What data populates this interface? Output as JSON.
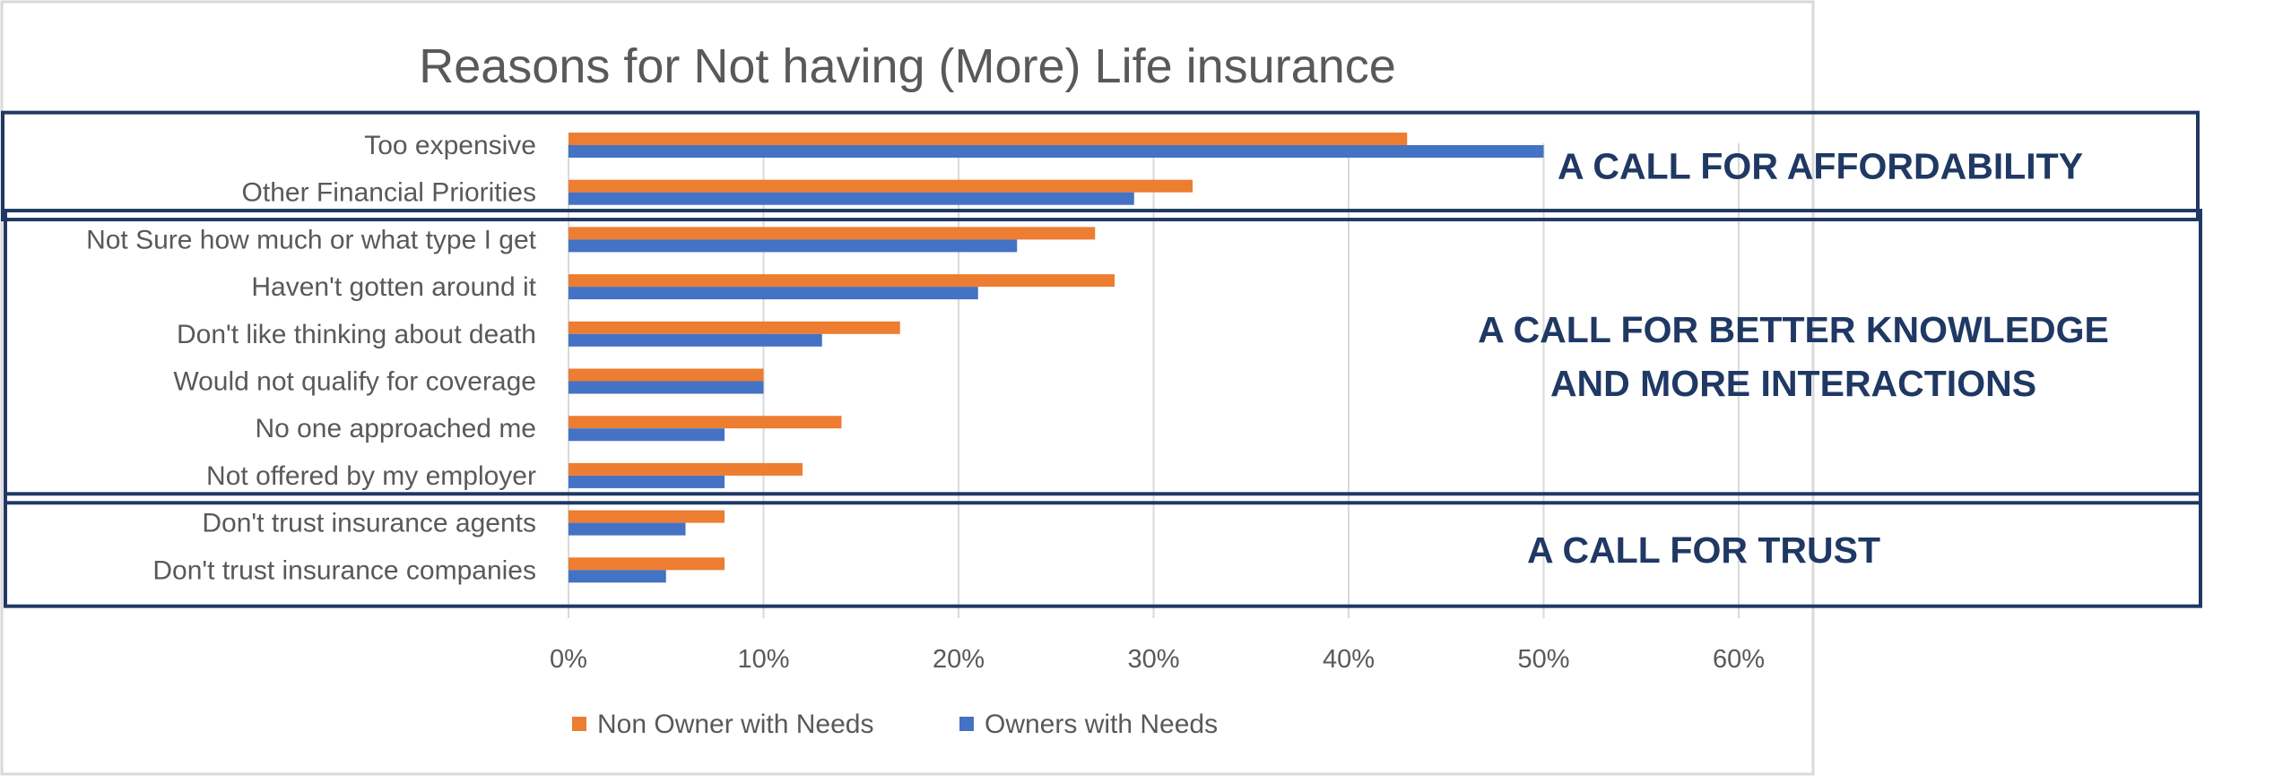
{
  "chart_data": {
    "type": "bar",
    "orientation": "horizontal",
    "title": "Reasons for Not having (More) Life insurance",
    "categories": [
      "Too expensive",
      "Other Financial Priorities",
      "Not Sure how much or what type I get",
      "Haven't gotten around it",
      "Don't like thinking about death",
      "Would not qualify for coverage",
      "No one approached me",
      "Not offered by my employer",
      "Don't trust insurance agents",
      "Don't trust insurance companies"
    ],
    "series": [
      {
        "name": "Non Owner with Needs",
        "color": "#ed7d31",
        "values": [
          43,
          32,
          27,
          28,
          17,
          10,
          14,
          12,
          8,
          8
        ]
      },
      {
        "name": "Owners with Needs",
        "color": "#4472c4",
        "values": [
          50,
          29,
          23,
          21,
          13,
          10,
          8,
          8,
          6,
          5
        ]
      }
    ],
    "xlim": [
      0,
      60
    ],
    "xticks": [
      "0%",
      "10%",
      "20%",
      "30%",
      "40%",
      "50%",
      "60%"
    ],
    "xlabel": "",
    "ylabel": "",
    "grid": "vertical",
    "legend": "bottom"
  },
  "callouts": [
    {
      "lines": [
        "A CALL FOR AFFORDABILITY"
      ],
      "categories": [
        0,
        1
      ]
    },
    {
      "lines": [
        "A CALL FOR BETTER KNOWLEDGE",
        "AND MORE INTERACTIONS"
      ],
      "categories": [
        2,
        3,
        4,
        5,
        6,
        7
      ]
    },
    {
      "lines": [
        "A CALL FOR TRUST"
      ],
      "categories": [
        8,
        9
      ]
    }
  ],
  "colors": {
    "callout_text": "#1f3864",
    "callout_border": "#1f3864",
    "gridline": "#d9d9d9",
    "text": "#595959"
  }
}
